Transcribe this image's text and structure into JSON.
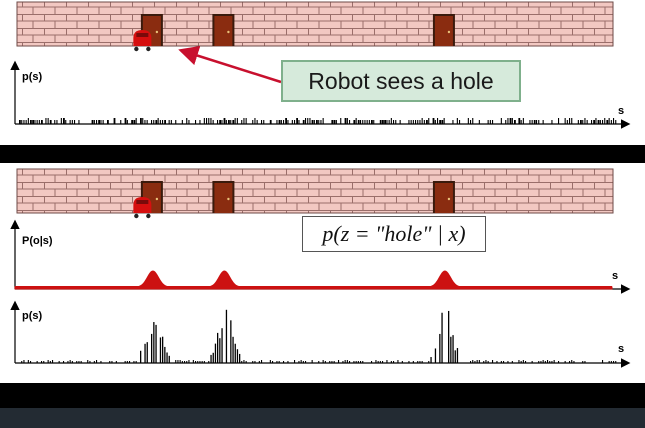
{
  "callout_text": "Robot sees a hole",
  "formula_text": "p(z = \"hole\" | x)",
  "panel1": {
    "ylabel": "p(s)",
    "xlabel": "s"
  },
  "panel2": {
    "ylabel_measurement": "P(o|s)",
    "xlabel_measurement": "s",
    "ylabel_posterior": "p(s)",
    "xlabel_posterior": "s"
  },
  "door_positions": [
    0.228,
    0.348,
    0.718
  ],
  "robot_position": 0.212,
  "colors": {
    "brick": "#f2c8c2",
    "mortar": "#9a6e6a",
    "door": "#8a2c10",
    "door_frame": "#3a1a0c",
    "robot": "#d60f0f",
    "arrow": "#c8102e",
    "likelihood": "#cc1111",
    "band_dark": "#000000",
    "footer": "#232b33",
    "callout_fill": "#d6eadb",
    "callout_border": "#7fb08c"
  },
  "chart_data": [
    {
      "type": "bar",
      "title": "",
      "ylabel": "p(s)",
      "xlabel": "s",
      "description_values": "uniform belief, many equal short bars",
      "values": [
        1,
        1,
        1,
        1,
        1,
        1,
        1,
        1,
        1,
        1,
        1,
        1,
        1,
        1,
        1,
        1,
        1,
        1,
        1,
        1
      ],
      "ylim": [
        0,
        1
      ]
    },
    {
      "type": "area",
      "title": "",
      "ylabel": "P(o|s)",
      "xlabel": "s",
      "peaks_at": [
        0.228,
        0.348,
        0.718
      ],
      "ylim": [
        0,
        1
      ]
    },
    {
      "type": "bar",
      "title": "",
      "ylabel": "p(s)",
      "xlabel": "s",
      "peaks_at": [
        0.228,
        0.348,
        0.718
      ],
      "ylim": [
        0,
        1
      ]
    }
  ]
}
